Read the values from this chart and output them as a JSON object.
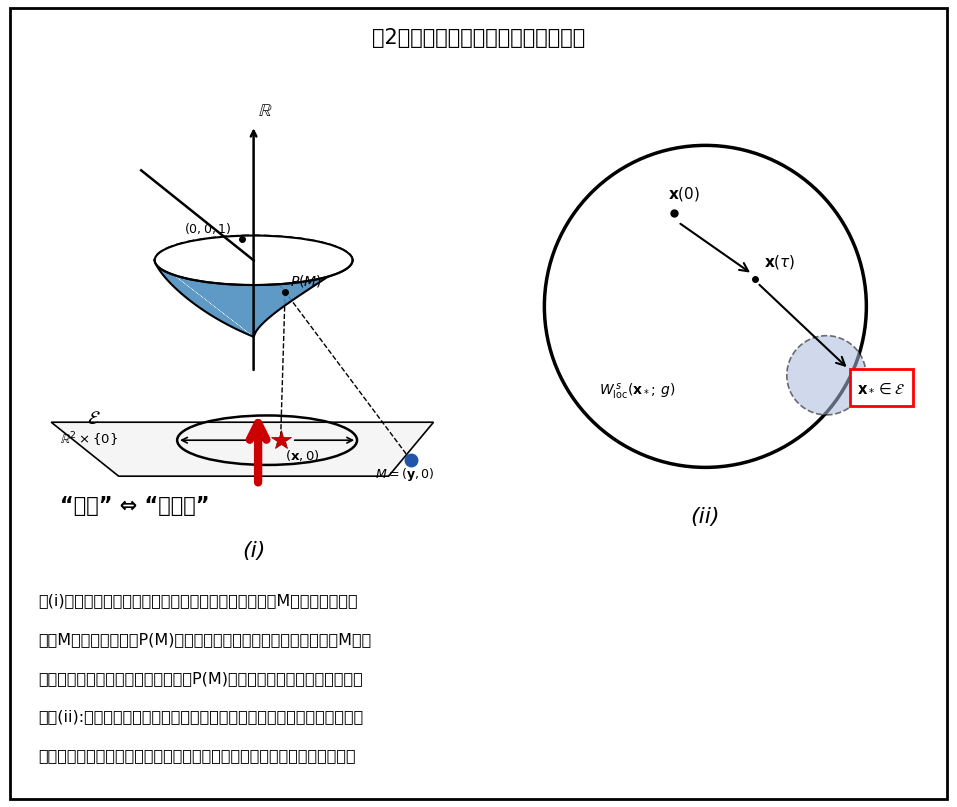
{
  "title": "図2：無限への発散＝地平線への収束",
  "title_fontsize": 15,
  "background_color": "#ffffff",
  "border_color": "#000000",
  "label_i": "(i)",
  "label_ii": "(ii)",
  "description_lines": [
    "　(i)：平面の放物面への埋め込み。焦点と平面上の点Mを通る線分を引",
    "き、Mを放物面の交点P(M)（の平面上への射影）と対応させる。Mが無",
    "限遠方に行く時、その方向を保ってP(M)は放物面の境界：地平線に近づ",
    "く。(ii):解が地平線へ近づく様子。近づき方を記述する集合：「局所安定",
    "多様体」の記述をもって、発散する解、特に爆発解の記述が実現される。"
  ],
  "paraboloid_fill": "#4d8fc0",
  "paraboloid_edge": "#000000",
  "red_star_color": "#cc0000",
  "blue_dot_color": "#2255aa",
  "red_arrow_color": "#cc0000",
  "shaded_circle_color": "#aabbdd",
  "quote_text": "“無限” ⇔ “地平線”"
}
